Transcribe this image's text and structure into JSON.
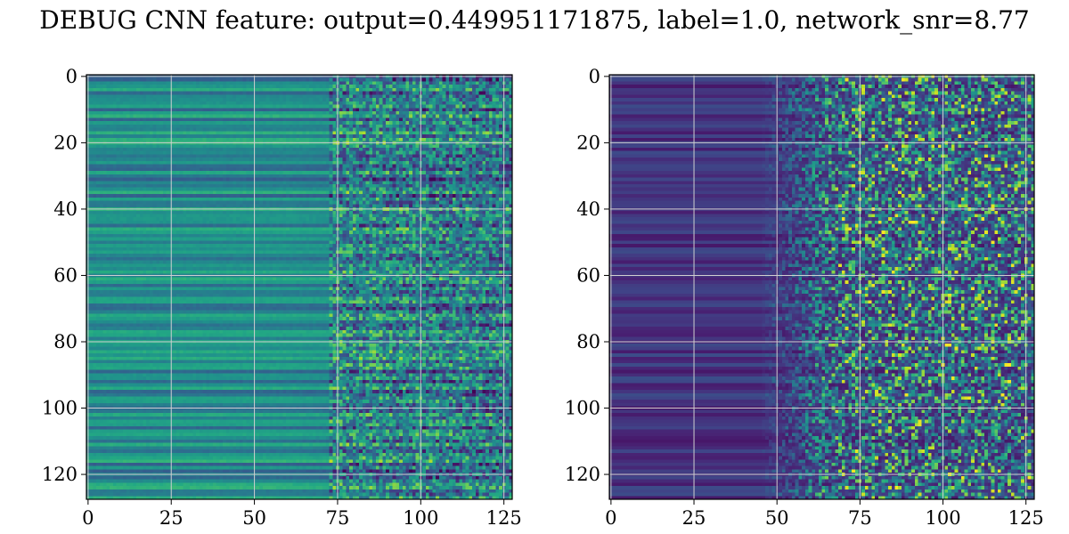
{
  "chart_data": {
    "title": "DEBUG CNN feature: output=0.449951171875, label=1.0, network_snr=8.77",
    "type": "heatmap",
    "grid": true,
    "colormap": "viridis",
    "panels": [
      {
        "xlim": [
          -0.5,
          127.5
        ],
        "ylim": [
          127.5,
          -0.5
        ],
        "xticks": [
          0,
          25,
          50,
          75,
          100,
          125
        ],
        "yticks": [
          0,
          20,
          40,
          60,
          80,
          100,
          120
        ]
      },
      {
        "xlim": [
          -0.5,
          127.5
        ],
        "ylim": [
          127.5,
          -0.5
        ],
        "xticks": [
          0,
          25,
          50,
          75,
          100,
          125
        ],
        "yticks": [
          0,
          20,
          40,
          60,
          80,
          100,
          120
        ]
      }
    ]
  }
}
